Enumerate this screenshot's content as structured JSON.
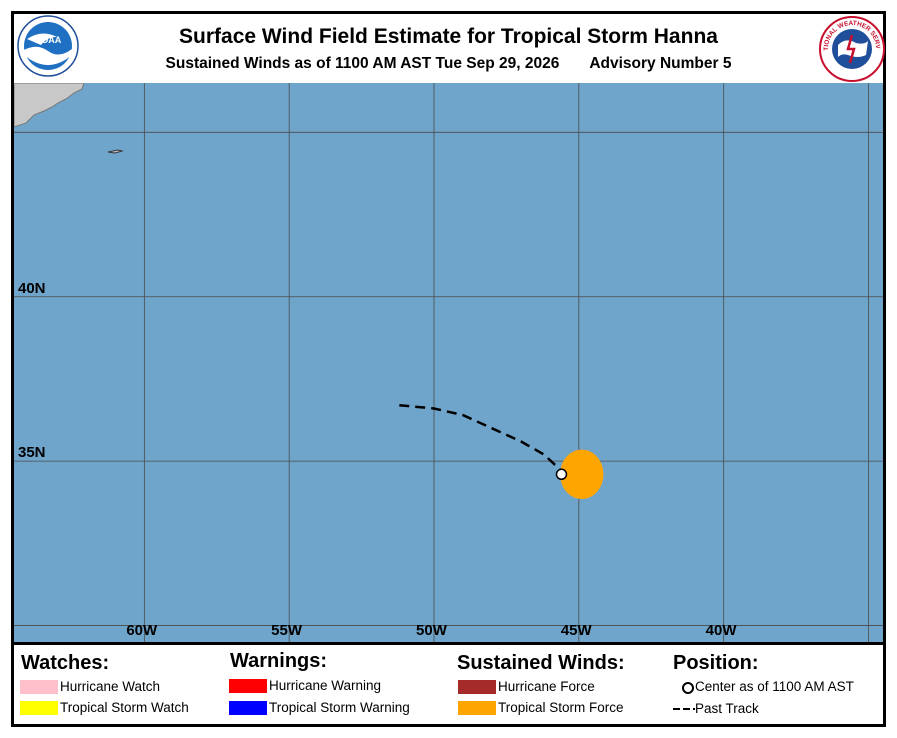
{
  "header": {
    "title": "Surface Wind Field Estimate for Tropical Storm Hanna",
    "subtitle_left": "Sustained Winds as of 1100 AM AST Tue Sep 29, 2026",
    "subtitle_right": "Advisory Number 5"
  },
  "logos": {
    "left": "noaa-logo",
    "right": "nws-logo",
    "left_text": "NOAA",
    "right_text": "NATIONAL WEATHER SERVICE"
  },
  "map": {
    "ocean_color": "#6fa5cb",
    "land_color": "#c8c8c8",
    "grid_color": "#4a4a4a",
    "lon_range": [
      -64.5,
      -34.5
    ],
    "lat_range": [
      29.5,
      46.5
    ],
    "latitude_labels": [
      {
        "value": 40,
        "label": "40N"
      },
      {
        "value": 35,
        "label": "35N"
      }
    ],
    "longitude_labels": [
      {
        "value": -60,
        "label": "60W"
      },
      {
        "value": -55,
        "label": "55W"
      },
      {
        "value": -50,
        "label": "50W"
      },
      {
        "value": -45,
        "label": "45W"
      },
      {
        "value": -40,
        "label": "40W"
      }
    ],
    "storm_center": {
      "lon": -45.6,
      "lat": 34.6
    },
    "tropical_storm_wind_field": {
      "lon": -44.9,
      "lat": 34.6,
      "radius_lon_deg": 0.75,
      "radius_lat_deg": 0.75,
      "color": "#ffa500"
    },
    "past_track": [
      {
        "lon": -51.2,
        "lat": 36.7
      },
      {
        "lon": -50.0,
        "lat": 36.6
      },
      {
        "lon": -49.0,
        "lat": 36.4
      },
      {
        "lon": -48.0,
        "lat": 36.0
      },
      {
        "lon": -47.0,
        "lat": 35.6
      },
      {
        "lon": -46.2,
        "lat": 35.2
      },
      {
        "lon": -45.6,
        "lat": 34.7
      }
    ]
  },
  "legend": {
    "watches": {
      "heading": "Watches:",
      "items": [
        {
          "label": "Hurricane Watch",
          "color": "#ffc0cb"
        },
        {
          "label": "Tropical Storm Watch",
          "color": "#ffff00"
        }
      ]
    },
    "warnings": {
      "heading": "Warnings:",
      "items": [
        {
          "label": "Hurricane Warning",
          "color": "#ff0000"
        },
        {
          "label": "Tropical Storm Warning",
          "color": "#0000ff"
        }
      ]
    },
    "winds": {
      "heading": "Sustained Winds:",
      "items": [
        {
          "label": "Hurricane Force",
          "color": "#a52a2a"
        },
        {
          "label": "Tropical Storm Force",
          "color": "#ffa500"
        }
      ]
    },
    "position": {
      "heading": "Position:",
      "center_label": "Center as of 1100 AM AST",
      "track_label": "Past Track"
    }
  }
}
